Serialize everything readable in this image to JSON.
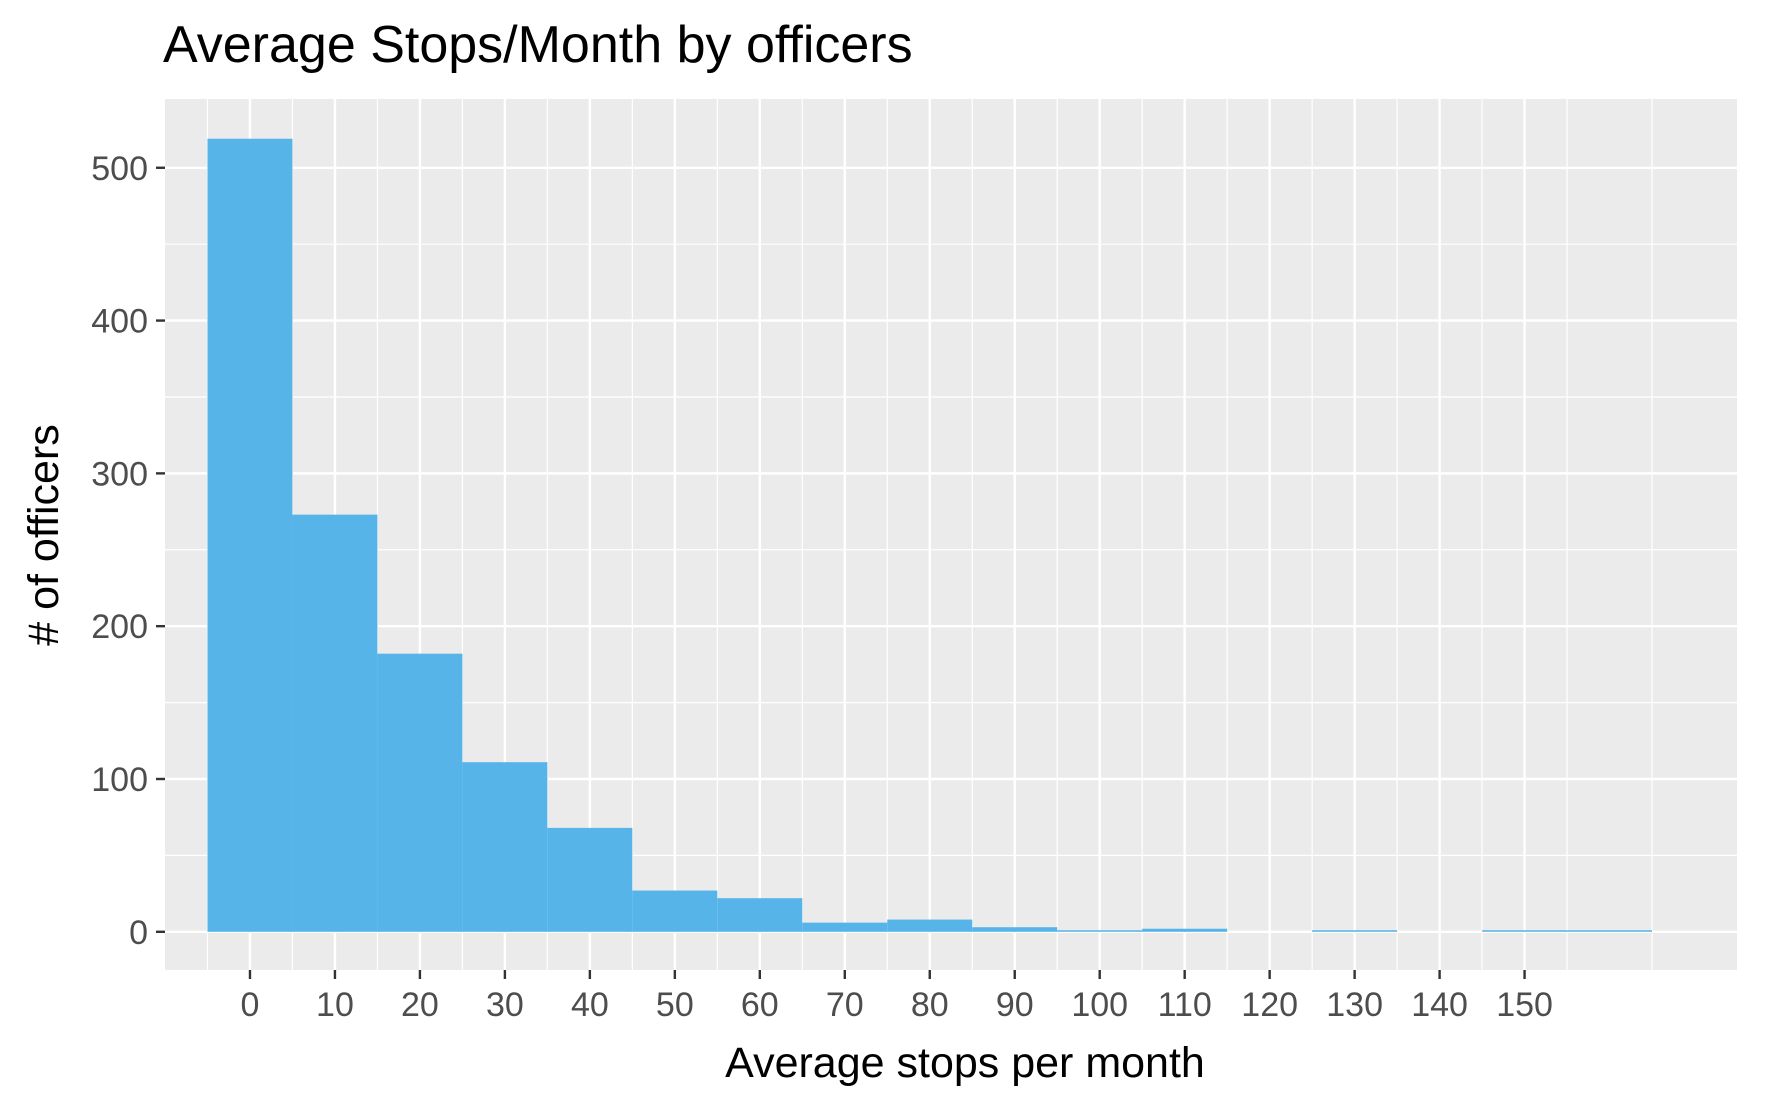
{
  "chart_data": {
    "type": "bar",
    "title": "Average Stops/Month by officers",
    "xlabel": "Average stops per month",
    "ylabel": "# of officers",
    "bin_width": 10,
    "bins": [
      {
        "center": 0,
        "count": 519
      },
      {
        "center": 10,
        "count": 273
      },
      {
        "center": 20,
        "count": 182
      },
      {
        "center": 30,
        "count": 111
      },
      {
        "center": 40,
        "count": 68
      },
      {
        "center": 50,
        "count": 27
      },
      {
        "center": 60,
        "count": 22
      },
      {
        "center": 70,
        "count": 6
      },
      {
        "center": 80,
        "count": 8
      },
      {
        "center": 90,
        "count": 3
      },
      {
        "center": 100,
        "count": 1
      },
      {
        "center": 110,
        "count": 2
      },
      {
        "center": 120,
        "count": 0
      },
      {
        "center": 130,
        "count": 1
      },
      {
        "center": 140,
        "count": 0
      },
      {
        "center": 150,
        "count": 1
      },
      {
        "center": 160,
        "count": 1
      }
    ],
    "xticks": [
      "0",
      "10",
      "20",
      "30",
      "40",
      "50",
      "60",
      "70",
      "80",
      "90",
      "100",
      "110",
      "120",
      "130",
      "140",
      "150"
    ],
    "yticks": [
      "0",
      "100",
      "200",
      "300",
      "400",
      "500"
    ],
    "xlim": [
      -10,
      175
    ],
    "ylim": [
      -25,
      545
    ],
    "grid": true,
    "bar_color": "#56B4E9",
    "panel_color": "#EBEBEB"
  }
}
